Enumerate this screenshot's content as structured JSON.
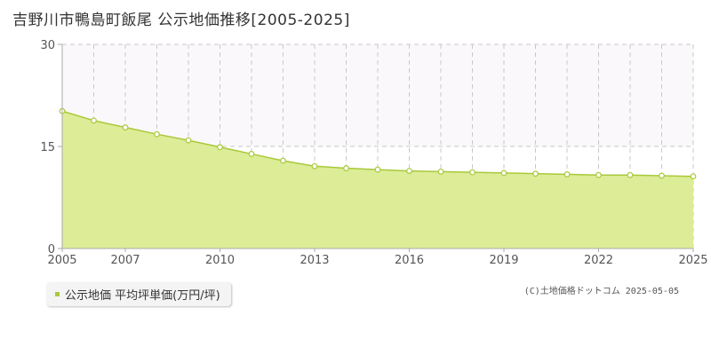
{
  "title": "吉野川市鴨島町飯尾 公示地価推移[2005-2025]",
  "legend": {
    "label": "公示地価 平均坪単価(万円/坪)"
  },
  "credit": "(C)土地価格ドットコム 2025-05-05",
  "colors": {
    "fill": "#dcec97",
    "line": "#a9c93a",
    "marker_fill": "#ffffff",
    "grid": "#c8c8c8",
    "axis": "#aaaaaa",
    "band": "#fbf8fb"
  },
  "chart_data": {
    "type": "area",
    "title": "吉野川市鴨島町飯尾 公示地価推移[2005-2025]",
    "xlabel": "",
    "ylabel": "",
    "x": [
      2005,
      2006,
      2007,
      2008,
      2009,
      2010,
      2011,
      2012,
      2013,
      2014,
      2015,
      2016,
      2017,
      2018,
      2019,
      2020,
      2021,
      2022,
      2023,
      2024,
      2025
    ],
    "series": [
      {
        "name": "公示地価 平均坪単価(万円/坪)",
        "values": [
          20.2,
          18.8,
          17.8,
          16.8,
          15.9,
          14.9,
          13.9,
          12.9,
          12.1,
          11.8,
          11.6,
          11.4,
          11.3,
          11.2,
          11.1,
          11.0,
          10.9,
          10.8,
          10.8,
          10.7,
          10.6
        ]
      }
    ],
    "xlim": [
      2005,
      2025
    ],
    "ylim": [
      0,
      30
    ],
    "yticks": [
      0,
      15,
      30
    ],
    "xtick_labels": [
      "2005",
      "2007",
      "2010",
      "2013",
      "2016",
      "2019",
      "2022",
      "2025"
    ],
    "grid": true,
    "legend_position": "bottom-left"
  }
}
